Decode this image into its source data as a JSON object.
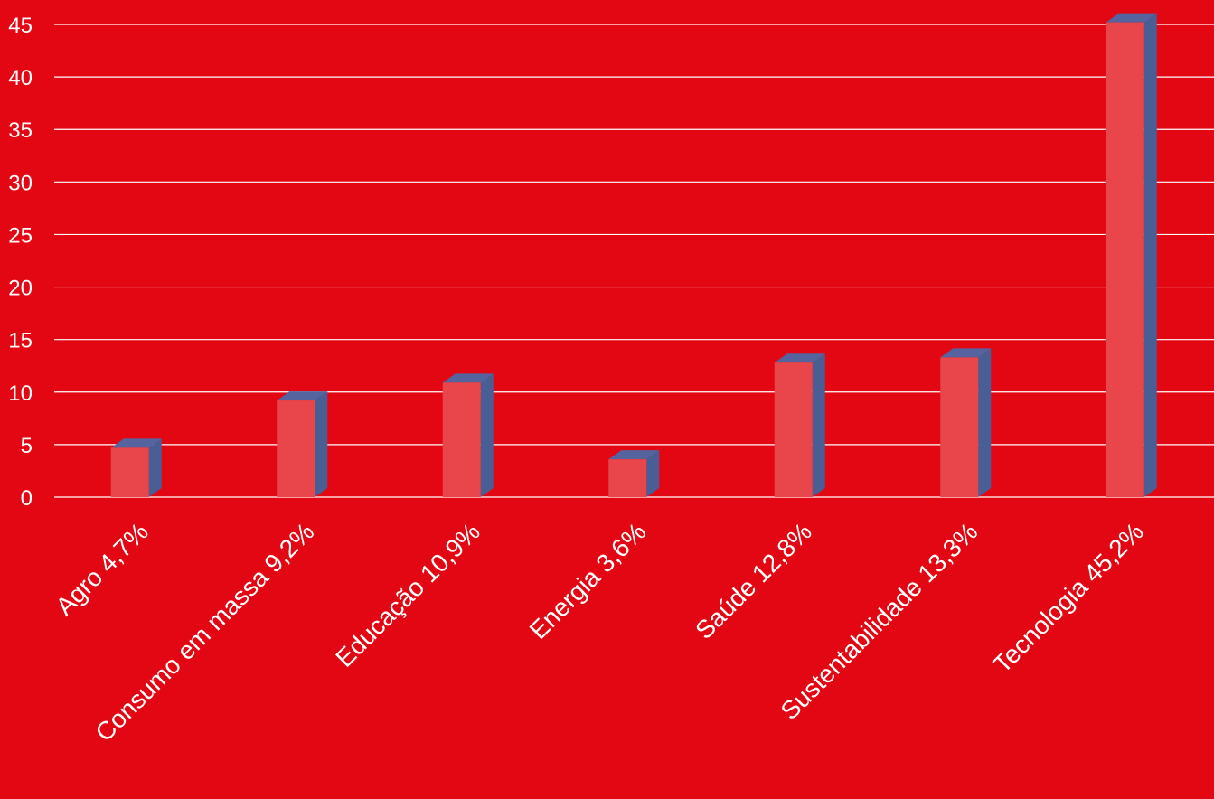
{
  "chart_data": {
    "type": "bar",
    "categories": [
      "Agro 4,7%",
      "Consumo em massa 9,2%",
      "Educação 10,9%",
      "Energia 3,6%",
      "Saúde 12,8%",
      "Sustentabilidade 13,3%",
      "Tecnologia 45,2%"
    ],
    "values": [
      4.7,
      9.2,
      10.9,
      3.6,
      12.8,
      13.3,
      45.2
    ],
    "y_ticks": [
      "0",
      "5",
      "10",
      "15",
      "20",
      "25",
      "30",
      "35",
      "40",
      "45"
    ],
    "ylim": [
      0,
      45
    ],
    "grid": true,
    "style": "3d-column",
    "colors": {
      "background": "#E30613",
      "bar_front": "#E8464A",
      "bar_side": "#4A5E96",
      "bar_top": "#55649E",
      "gridline": "#FFFFFF",
      "text": "#FFFFFF"
    }
  }
}
